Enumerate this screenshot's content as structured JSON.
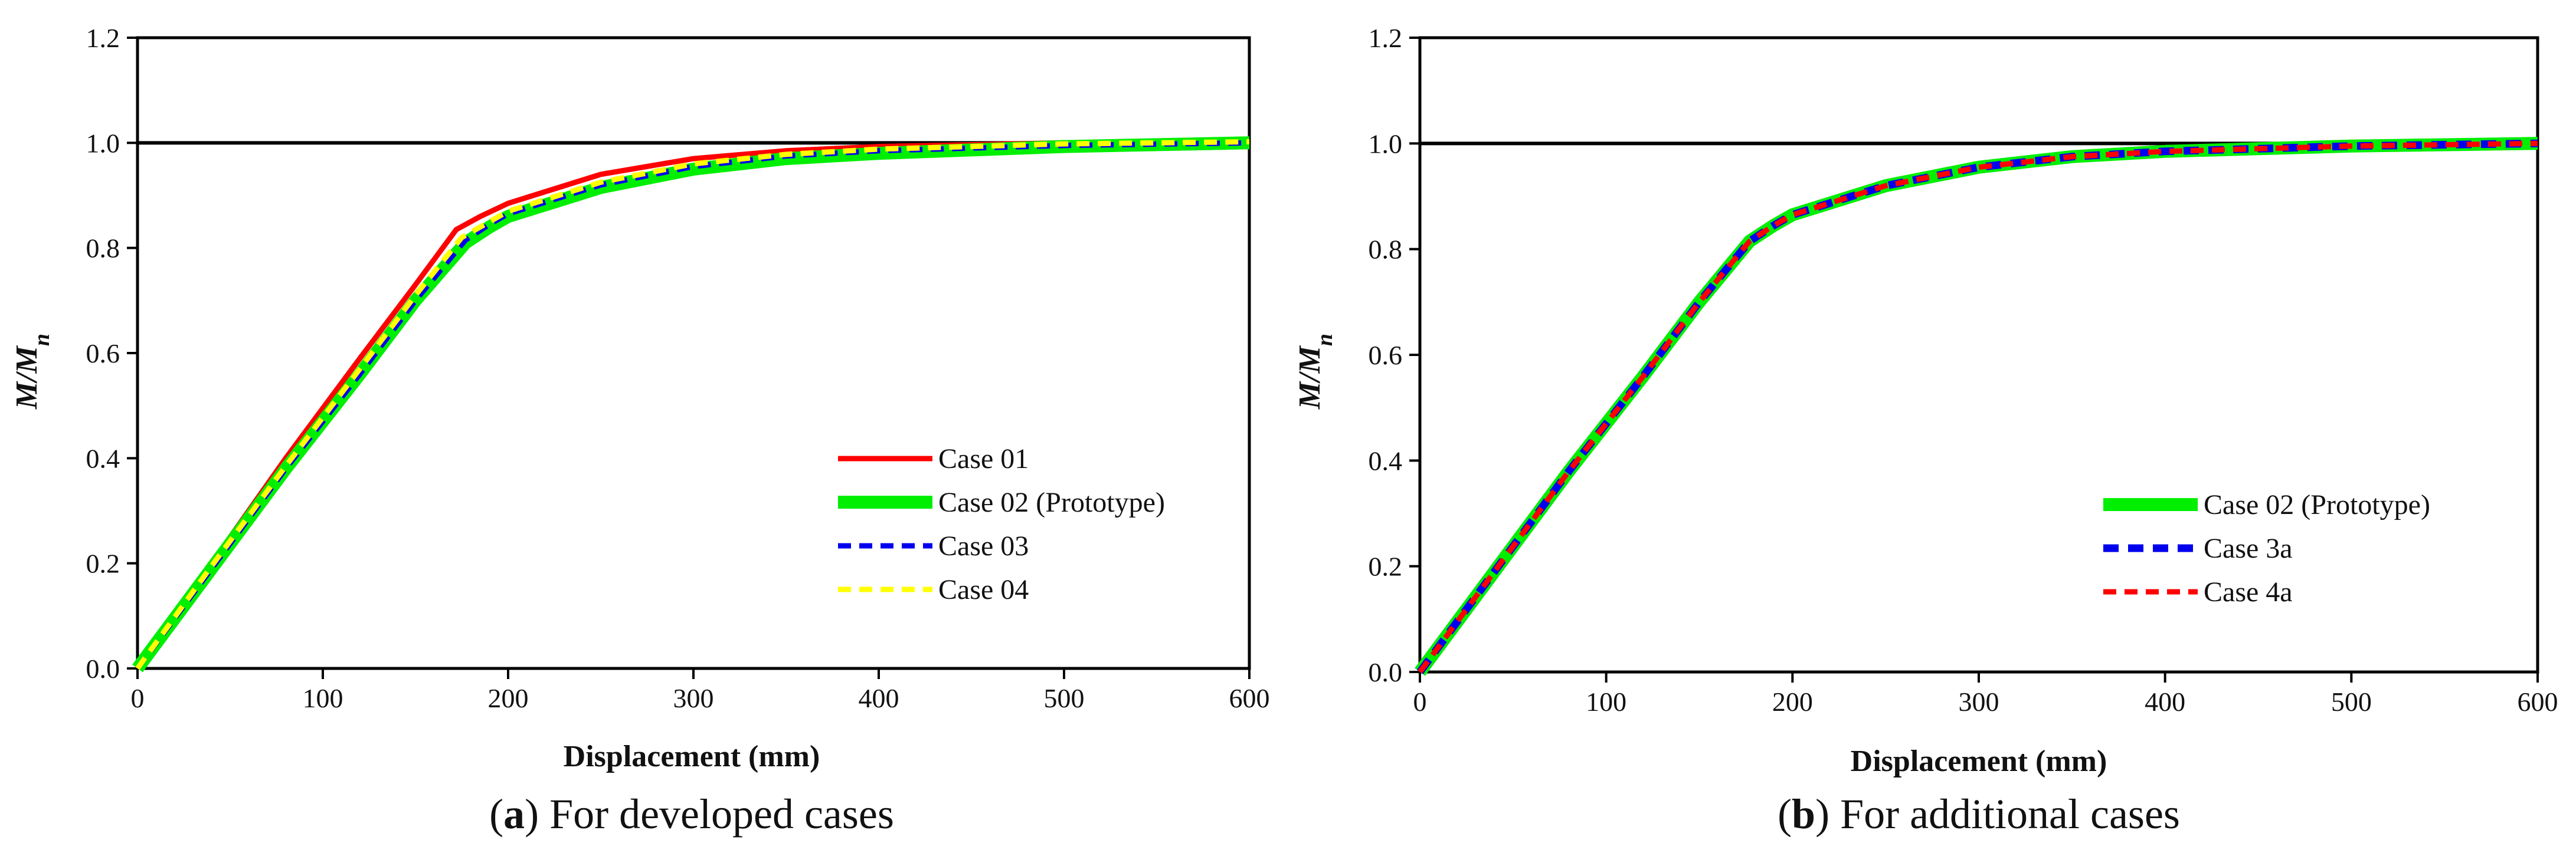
{
  "chart_data": [
    {
      "panel": "a",
      "type": "line",
      "caption": {
        "label": "a",
        "text": ") For developed cases"
      },
      "xlabel": "Displacement (mm)",
      "ylabel": "M/M",
      "ylabel_sub": "n",
      "xlim": [
        0,
        600
      ],
      "ylim": [
        0,
        1.2
      ],
      "xticks": [
        "0",
        "100",
        "200",
        "300",
        "400",
        "500",
        "600"
      ],
      "yticks": [
        "0.0",
        "0.2",
        "0.4",
        "0.6",
        "0.8",
        "1.0",
        "1.2"
      ],
      "reference_line": 1.0,
      "series": [
        {
          "name": "Case 01",
          "color": "#ff0000",
          "style": "solid-thin",
          "x": [
            0,
            40,
            80,
            120,
            150,
            172,
            185,
            200,
            250,
            300,
            350,
            400,
            500,
            600
          ],
          "y": [
            0.0,
            0.2,
            0.4,
            0.59,
            0.73,
            0.835,
            0.86,
            0.885,
            0.94,
            0.97,
            0.985,
            0.993,
            1.0,
            1.003
          ]
        },
        {
          "name": "Case 02 (Prototype)",
          "color": "#00ee00",
          "style": "solid-thick",
          "x": [
            0,
            40,
            80,
            120,
            150,
            177,
            190,
            200,
            250,
            300,
            350,
            400,
            500,
            600
          ],
          "y": [
            0.0,
            0.19,
            0.38,
            0.56,
            0.7,
            0.81,
            0.84,
            0.86,
            0.915,
            0.95,
            0.97,
            0.98,
            0.993,
            1.0
          ]
        },
        {
          "name": "Case 03",
          "color": "#0000ee",
          "style": "dashed",
          "x": [
            0,
            40,
            80,
            120,
            150,
            177,
            190,
            200,
            250,
            300,
            350,
            400,
            500,
            600
          ],
          "y": [
            0.0,
            0.19,
            0.38,
            0.56,
            0.7,
            0.815,
            0.845,
            0.865,
            0.92,
            0.955,
            0.975,
            0.985,
            0.995,
            1.0
          ]
        },
        {
          "name": "Case 04",
          "color": "#ffff00",
          "style": "dashed",
          "x": [
            0,
            40,
            80,
            120,
            150,
            175,
            190,
            200,
            250,
            300,
            350,
            400,
            500,
            600
          ],
          "y": [
            0.0,
            0.195,
            0.385,
            0.57,
            0.71,
            0.82,
            0.85,
            0.87,
            0.925,
            0.96,
            0.978,
            0.988,
            0.998,
            1.002
          ]
        }
      ]
    },
    {
      "panel": "b",
      "type": "line",
      "caption": {
        "label": "b",
        "text": ") For additional cases"
      },
      "xlabel": "Displacement (mm)",
      "ylabel": "M/M",
      "ylabel_sub": "n",
      "xlim": [
        0,
        600
      ],
      "ylim": [
        0,
        1.2
      ],
      "xticks": [
        "0",
        "100",
        "200",
        "300",
        "400",
        "500",
        "600"
      ],
      "yticks": [
        "0.0",
        "0.2",
        "0.4",
        "0.6",
        "0.8",
        "1.0",
        "1.2"
      ],
      "reference_line": 1.0,
      "series": [
        {
          "name": "Case 02 (Prototype)",
          "color": "#00ee00",
          "style": "solid-thick",
          "x": [
            0,
            40,
            80,
            120,
            150,
            177,
            190,
            200,
            250,
            300,
            350,
            400,
            500,
            600
          ],
          "y": [
            0.0,
            0.19,
            0.38,
            0.56,
            0.7,
            0.815,
            0.845,
            0.865,
            0.92,
            0.955,
            0.975,
            0.985,
            0.995,
            1.0
          ]
        },
        {
          "name": "Case 3a",
          "color": "#0000ee",
          "style": "dashed-thick",
          "x": [
            0,
            40,
            80,
            120,
            150,
            177,
            190,
            200,
            250,
            300,
            350,
            400,
            500,
            600
          ],
          "y": [
            0.0,
            0.19,
            0.38,
            0.56,
            0.7,
            0.815,
            0.845,
            0.865,
            0.92,
            0.955,
            0.975,
            0.985,
            0.995,
            1.0
          ]
        },
        {
          "name": "Case 4a",
          "color": "#ff0000",
          "style": "dashed",
          "x": [
            0,
            40,
            80,
            120,
            150,
            177,
            190,
            200,
            250,
            300,
            350,
            400,
            500,
            600
          ],
          "y": [
            0.0,
            0.19,
            0.38,
            0.56,
            0.7,
            0.815,
            0.845,
            0.865,
            0.92,
            0.955,
            0.975,
            0.985,
            0.995,
            1.0
          ]
        }
      ]
    }
  ]
}
